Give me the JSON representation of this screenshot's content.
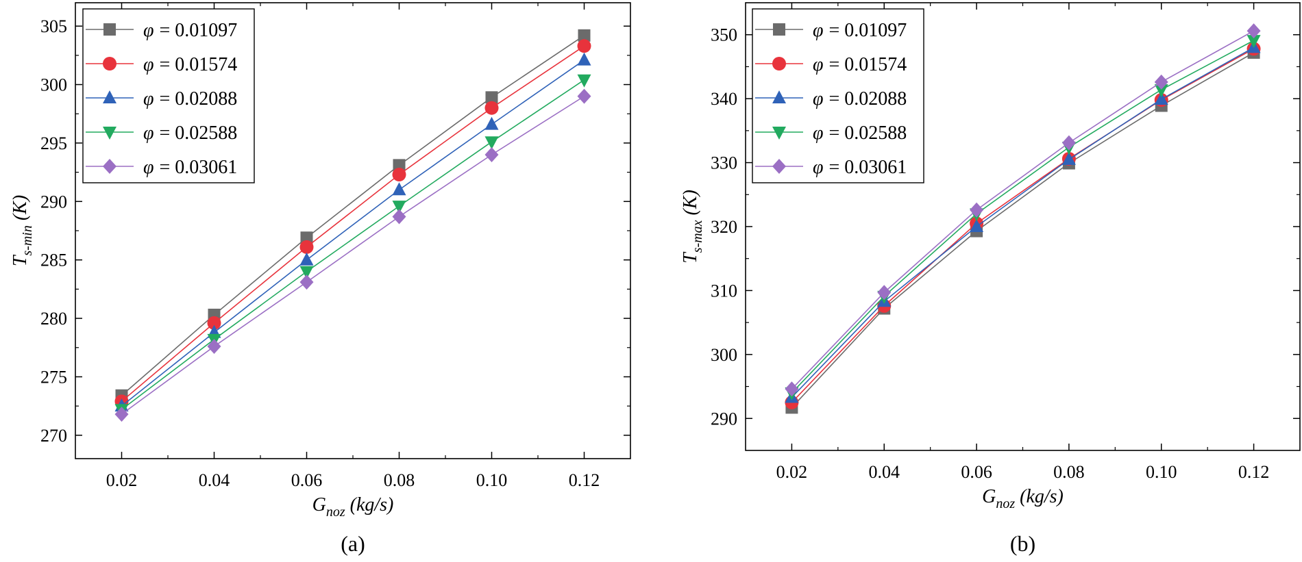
{
  "figure_captions": [
    "(a)",
    "(b)"
  ],
  "chart_data": [
    {
      "type": "line",
      "caption": "(a)",
      "xlabel": {
        "main": "G",
        "sub": "noz",
        "unit": " (kg/s)"
      },
      "ylabel": {
        "main": "T",
        "sub": "s-min",
        "unit": " (K)"
      },
      "x": [
        0.02,
        0.04,
        0.06,
        0.08,
        0.1,
        0.12
      ],
      "x_tick_labels": [
        "0.02",
        "0.04",
        "0.06",
        "0.08",
        "0.10",
        "0.12"
      ],
      "xlim": [
        0.01,
        0.13
      ],
      "ylim": [
        268,
        307
      ],
      "y_ticks": [
        270,
        275,
        280,
        285,
        290,
        295,
        300,
        305
      ],
      "y_tick_labels": [
        "270",
        "275",
        "280",
        "285",
        "290",
        "295",
        "300",
        "305"
      ],
      "grid": false,
      "legend_position": "top-left",
      "series": [
        {
          "name": "φ = 0.01097",
          "phi": "φ",
          "value_label": "= 0.01097",
          "color": "#6b6b6b",
          "marker": "square",
          "values": [
            273.4,
            280.3,
            286.9,
            293.1,
            298.9,
            304.2
          ]
        },
        {
          "name": "φ = 0.01574",
          "phi": "φ",
          "value_label": "= 0.01574",
          "color": "#e8333c",
          "marker": "circle",
          "values": [
            272.9,
            279.6,
            286.1,
            292.3,
            298.0,
            303.3
          ]
        },
        {
          "name": "φ = 0.02088",
          "phi": "φ",
          "value_label": "= 0.02088",
          "color": "#2f62b8",
          "marker": "triangle-up",
          "values": [
            272.5,
            278.8,
            285.0,
            291.0,
            296.6,
            302.1
          ]
        },
        {
          "name": "φ = 0.02588",
          "phi": "φ",
          "value_label": "= 0.02588",
          "color": "#22aa5f",
          "marker": "triangle-down",
          "values": [
            272.2,
            278.2,
            284.0,
            289.6,
            295.1,
            300.4
          ]
        },
        {
          "name": "φ = 0.03061",
          "phi": "φ",
          "value_label": "= 0.03061",
          "color": "#9b6fc4",
          "marker": "diamond",
          "values": [
            271.8,
            277.6,
            283.1,
            288.7,
            294.0,
            299.0
          ]
        }
      ]
    },
    {
      "type": "line",
      "caption": "(b)",
      "xlabel": {
        "main": "G",
        "sub": "noz",
        "unit": " (kg/s)"
      },
      "ylabel": {
        "main": "T",
        "sub": "s-max",
        "unit": " (K)"
      },
      "x": [
        0.02,
        0.04,
        0.06,
        0.08,
        0.1,
        0.12
      ],
      "x_tick_labels": [
        "0.02",
        "0.04",
        "0.06",
        "0.08",
        "0.10",
        "0.12"
      ],
      "xlim": [
        0.01,
        0.13
      ],
      "ylim": [
        285,
        355
      ],
      "y_ticks": [
        290,
        300,
        310,
        320,
        330,
        340,
        350
      ],
      "y_tick_labels": [
        "290",
        "300",
        "310",
        "320",
        "330",
        "340",
        "350"
      ],
      "grid": false,
      "legend_position": "top-left",
      "series": [
        {
          "name": "φ = 0.01097",
          "phi": "φ",
          "value_label": "= 0.01097",
          "color": "#6b6b6b",
          "marker": "square",
          "values": [
            291.7,
            307.2,
            319.3,
            329.9,
            338.9,
            347.2
          ]
        },
        {
          "name": "φ = 0.01574",
          "phi": "φ",
          "value_label": "= 0.01574",
          "color": "#e8333c",
          "marker": "circle",
          "values": [
            292.5,
            307.6,
            320.5,
            330.6,
            339.8,
            347.8
          ]
        },
        {
          "name": "φ = 0.02088",
          "phi": "φ",
          "value_label": "= 0.02088",
          "color": "#2f62b8",
          "marker": "triangle-up",
          "values": [
            293.3,
            308.3,
            320.0,
            330.5,
            339.9,
            348.0
          ]
        },
        {
          "name": "φ = 0.02588",
          "phi": "φ",
          "value_label": "= 0.02588",
          "color": "#22aa5f",
          "marker": "triangle-down",
          "values": [
            294.0,
            309.1,
            322.0,
            332.4,
            341.4,
            349.1
          ]
        },
        {
          "name": "φ = 0.03061",
          "phi": "φ",
          "value_label": "= 0.03061",
          "color": "#9b6fc4",
          "marker": "diamond",
          "values": [
            294.6,
            309.7,
            322.6,
            333.1,
            342.6,
            350.6
          ]
        }
      ]
    }
  ]
}
